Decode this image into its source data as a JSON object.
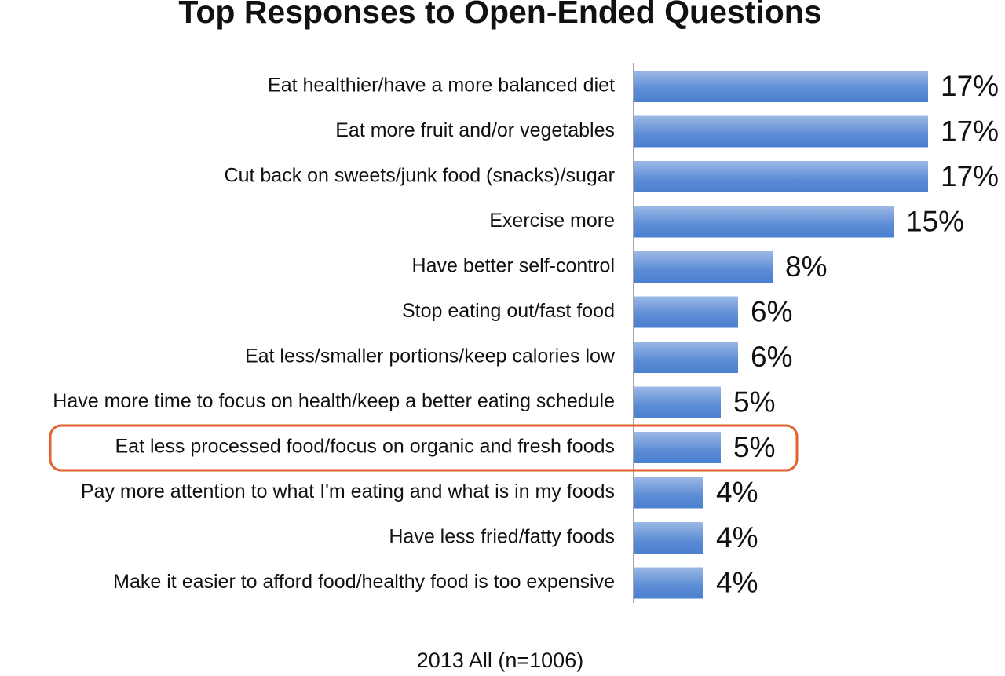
{
  "chart_data": {
    "type": "hbar",
    "title": "Top Responses to Open-Ended Questions",
    "categories": [
      "Eat healthier/have a more balanced diet",
      "Eat more fruit and/or vegetables",
      "Cut back on sweets/junk food (snacks)/sugar",
      "Exercise more",
      "Have better self-control",
      "Stop eating out/fast food",
      "Eat less/smaller portions/keep calories low",
      "Have more time to focus on health/keep a better eating schedule",
      "Eat less processed food/focus on organic and fresh foods",
      "Pay more attention to what I'm eating and what is in my foods",
      "Have less fried/fatty foods",
      "Make it easier to afford food/healthy food is too expensive"
    ],
    "values": [
      17,
      17,
      17,
      15,
      8,
      6,
      6,
      5,
      5,
      4,
      4,
      4
    ],
    "value_labels": [
      "17%",
      "17%",
      "17%",
      "15%",
      "8%",
      "6%",
      "6%",
      "5%",
      "5%",
      "4%",
      "4%",
      "4%"
    ],
    "color": "#4a7fd0",
    "highlight": 8,
    "highlight_color": "#e0622f",
    "xlabel": "2013 All (n=1006)"
  }
}
